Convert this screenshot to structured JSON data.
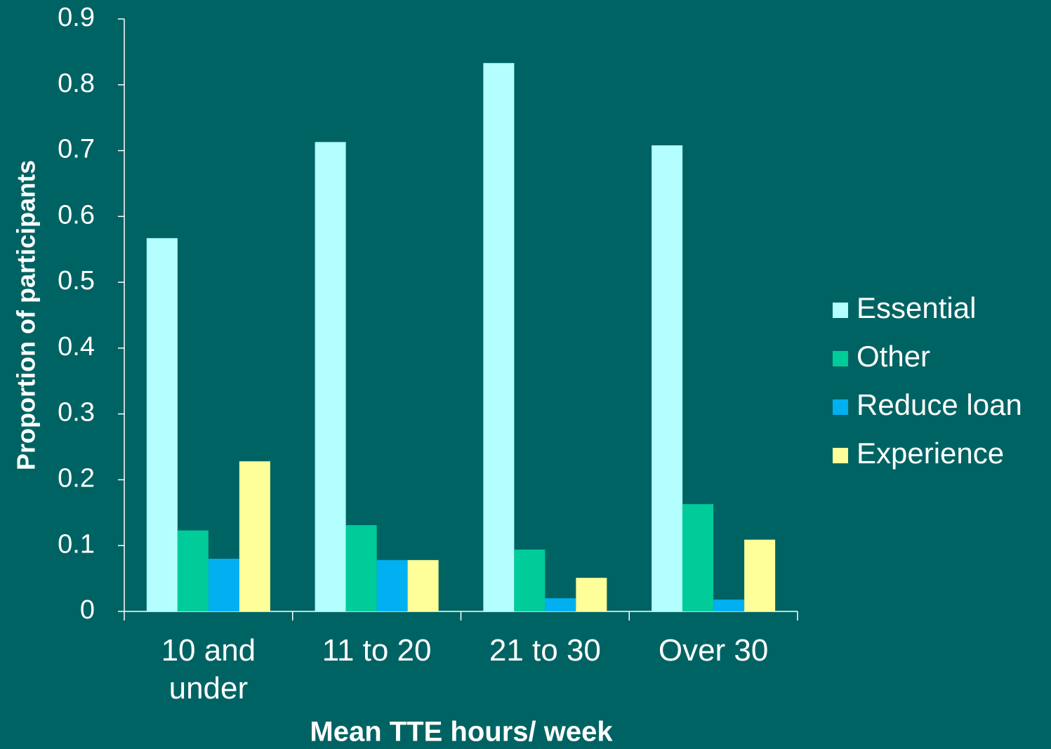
{
  "chart_data": {
    "type": "bar",
    "categories": [
      "10 and under",
      "11 to 20",
      "21 to 30",
      "Over 30"
    ],
    "series": [
      {
        "name": "Essential",
        "color": "#b3ffff",
        "values": [
          0.567,
          0.713,
          0.833,
          0.708
        ]
      },
      {
        "name": "Other",
        "color": "#00cc99",
        "values": [
          0.123,
          0.131,
          0.094,
          0.163
        ]
      },
      {
        "name": "Reduce loan",
        "color": "#00b0f0",
        "values": [
          0.08,
          0.078,
          0.02,
          0.018
        ]
      },
      {
        "name": "Experience",
        "color": "#ffff99",
        "values": [
          0.228,
          0.078,
          0.051,
          0.109
        ]
      }
    ],
    "x_label": "Mean TTE hours/ week",
    "y_label": "Proportion of participants",
    "ylim": [
      0,
      0.9
    ],
    "yticks": [
      0,
      0.1,
      0.2,
      0.3,
      0.4,
      0.5,
      0.6,
      0.7,
      0.8,
      0.9
    ],
    "legend": "right"
  }
}
